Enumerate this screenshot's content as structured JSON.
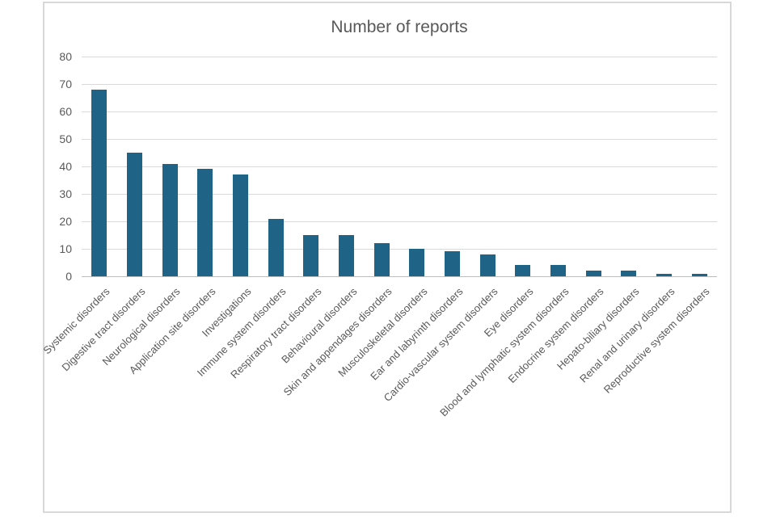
{
  "chart_data": {
    "type": "bar",
    "title": "Number of reports",
    "categories": [
      "Systemic disorders",
      "Digestive tract disorders",
      "Neurological disorders",
      "Application site disorders",
      "Investigations",
      "Immune system disorders",
      "Respiratory tract disorders",
      "Behavioural disorders",
      "Skin and appendages disorders",
      "Musculoskeletal disorders",
      "Ear and labyrinth disorders",
      "Cardio-vascular system disorders",
      "Eye disorders",
      "Blood and lymphatic system disorders",
      "Endocrine system disorders",
      "Hepato-biliary disorders",
      "Renal and urinary disorders",
      "Reproductive system disorders"
    ],
    "values": [
      68,
      45,
      41,
      39,
      37,
      21,
      15,
      15,
      12,
      10,
      9,
      8,
      4,
      4,
      2,
      2,
      1,
      1
    ],
    "yticks": [
      0,
      10,
      20,
      30,
      40,
      50,
      60,
      70,
      80
    ],
    "ylim": [
      0,
      80
    ],
    "xlabel": "",
    "ylabel": "",
    "grid": true,
    "legend_position": "none",
    "x_label_rotation_deg": 45,
    "colors": {
      "bar": "#1f6387",
      "title": "#595959",
      "axis_labels": "#595959",
      "gridlines": "#d9d9d9",
      "frame_border": "#d8d8d8"
    }
  }
}
